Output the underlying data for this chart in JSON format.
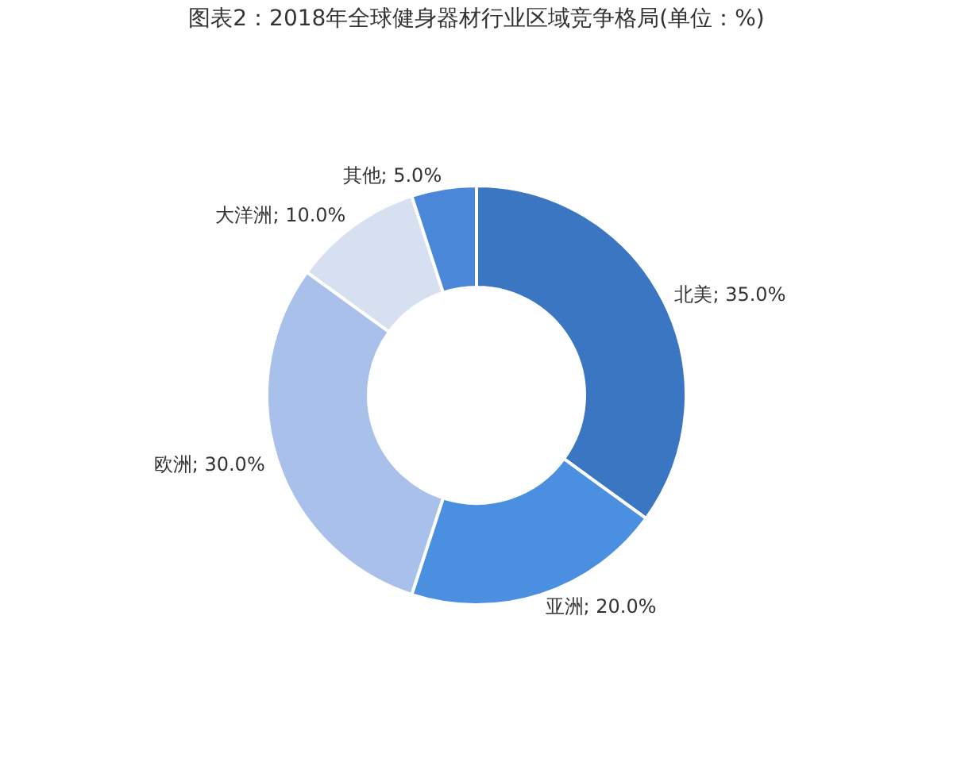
{
  "chart_data": {
    "type": "donut",
    "title": "图表2：2018年全球健身器材行业区域竞争格局(单位：%)",
    "categories": [
      "北美",
      "亚洲",
      "欧洲",
      "大洋洲",
      "其他"
    ],
    "values": [
      35,
      20,
      30,
      10,
      5
    ],
    "colors": [
      "#3b76c3",
      "#4a8fe0",
      "#a9c1ea",
      "#d6e0f1",
      "#4b87d8"
    ],
    "value_labels": [
      "35.0%",
      "20.0%",
      "30.0%",
      "10.0%",
      "5.0%"
    ]
  }
}
